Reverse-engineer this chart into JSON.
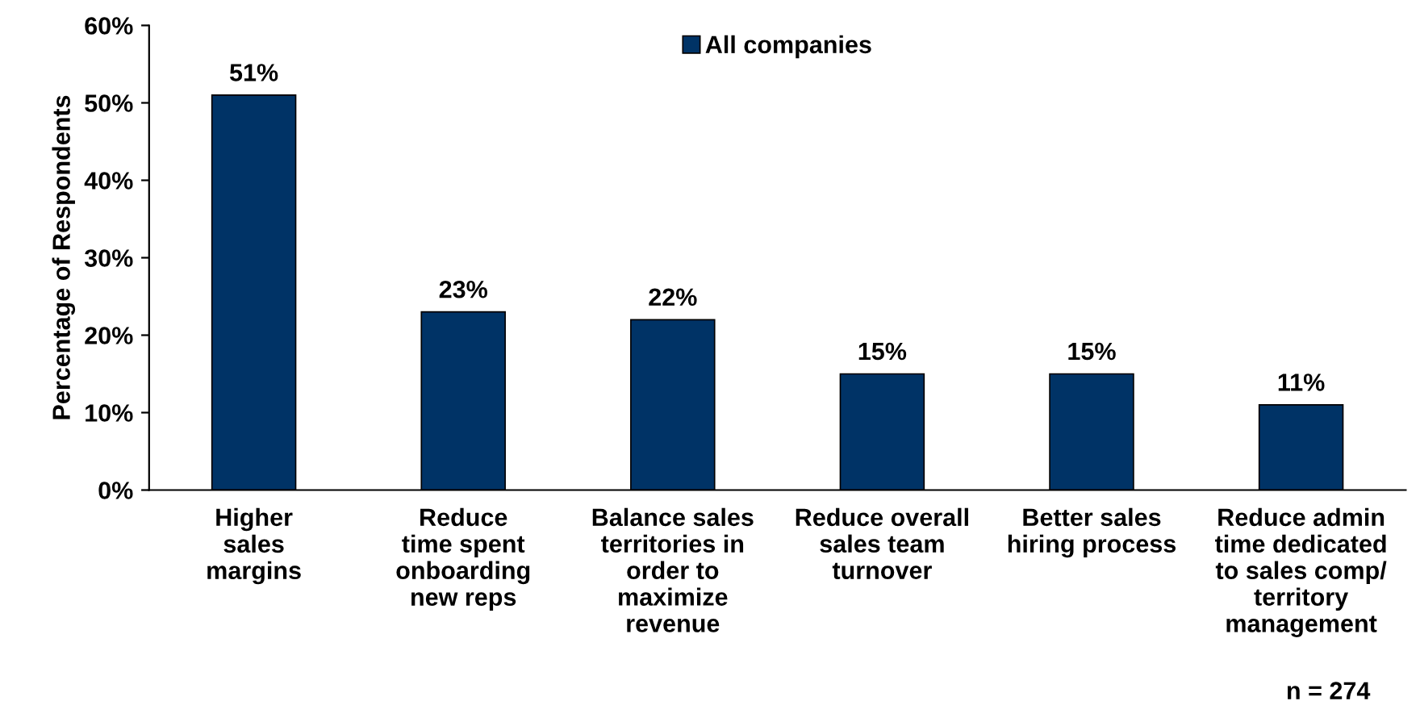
{
  "chart_data": {
    "type": "bar",
    "ylabel": "Percentage of Respondents",
    "categories": [
      "Higher\nsales\nmargins",
      "Reduce\ntime spent\nonboarding\nnew reps",
      "Balance sales\nterritories in\norder to\nmaximize\nrevenue",
      "Reduce overall\nsales team\nturnover",
      "Better sales\nhiring process",
      "Reduce admin\ntime dedicated\nto sales comp/\nterritory\nmanagement"
    ],
    "series": [
      {
        "name": "All companies",
        "color": "#003366",
        "values": [
          51,
          23,
          22,
          15,
          15,
          11
        ],
        "value_labels": [
          "51%",
          "23%",
          "22%",
          "15%",
          "15%",
          "11%"
        ]
      }
    ],
    "ylim": [
      0,
      60
    ],
    "yticks": [
      {
        "value": 0,
        "label": "0%"
      },
      {
        "value": 10,
        "label": "10%"
      },
      {
        "value": 20,
        "label": "20%"
      },
      {
        "value": 30,
        "label": "30%"
      },
      {
        "value": 40,
        "label": "40%"
      },
      {
        "value": 50,
        "label": "50%"
      },
      {
        "value": 60,
        "label": "60%"
      }
    ],
    "grid": false,
    "legend": "top",
    "annotations": [
      "n = 274"
    ]
  }
}
